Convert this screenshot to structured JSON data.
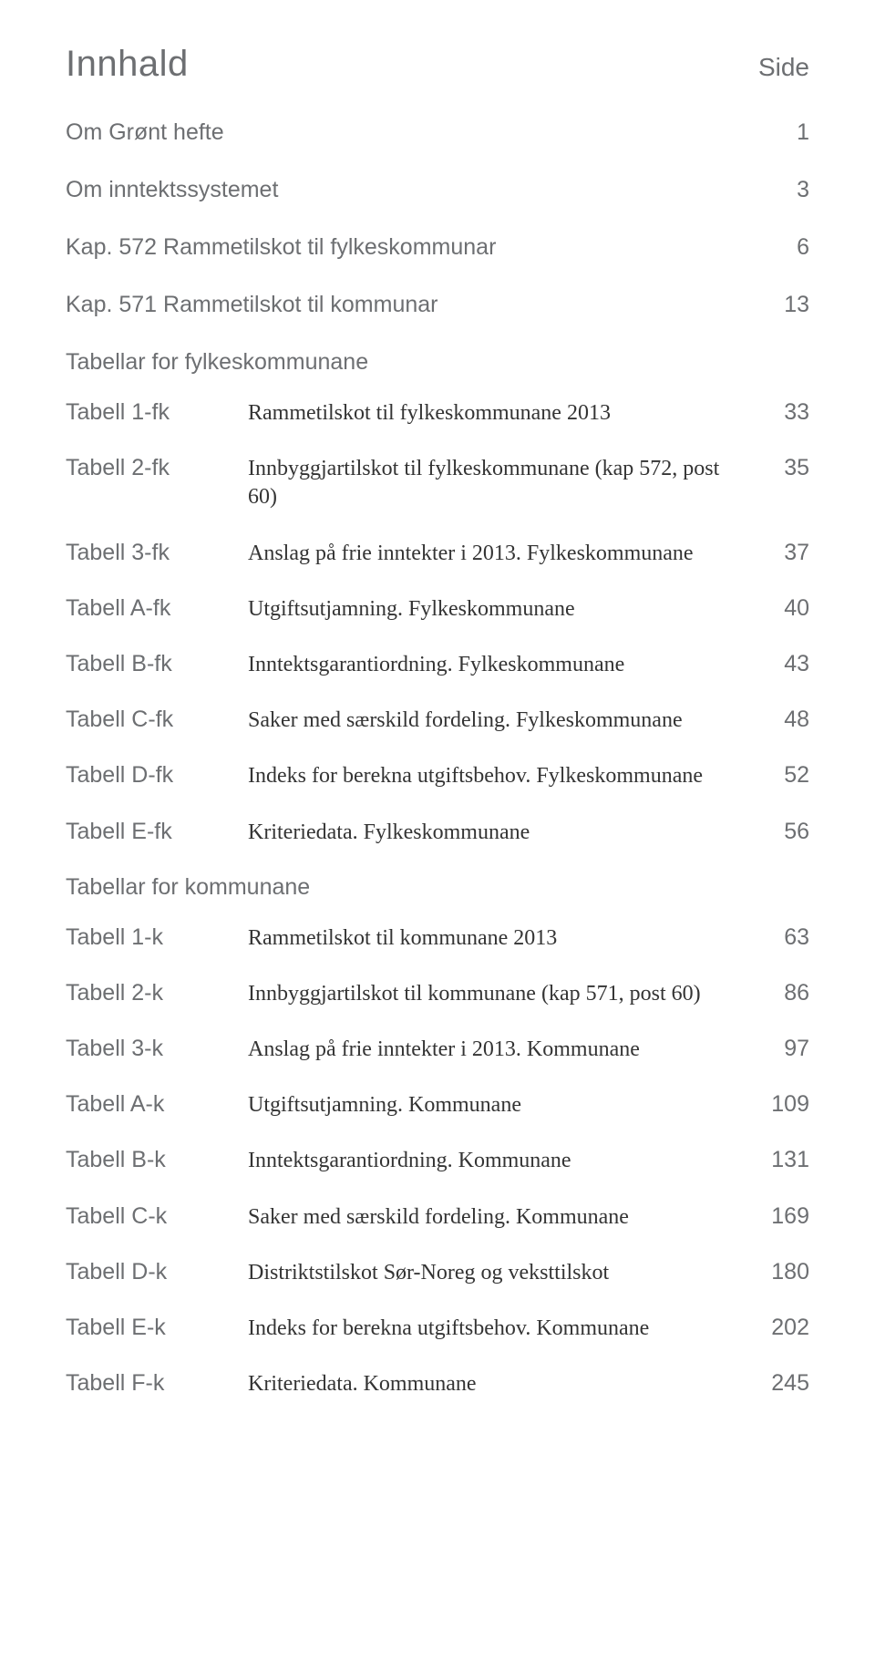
{
  "title": "Innhald",
  "side_label": "Side",
  "top_sections": [
    {
      "label": "Om Grønt hefte",
      "page": "1"
    },
    {
      "label": "Om inntektssystemet",
      "page": "3"
    },
    {
      "label": "Kap. 572 Rammetilskot til fylkeskommunar",
      "page": "6"
    },
    {
      "label": "Kap. 571 Rammetilskot til kommunar",
      "page": "13"
    }
  ],
  "group1_heading": "Tabellar for fylkeskommunane",
  "group1": [
    {
      "key": "Tabell 1-fk",
      "desc": "Rammetilskot til fylkeskommunane 2013",
      "page": "33"
    },
    {
      "key": "Tabell 2-fk",
      "desc": "Innbyggjartilskot til fylkeskommunane (kap 572, post 60)",
      "page": "35"
    },
    {
      "key": "Tabell 3-fk",
      "desc": "Anslag på frie inntekter i 2013. Fylkeskommunane",
      "page": "37"
    },
    {
      "key": "Tabell A-fk",
      "desc": "Utgiftsutjamning. Fylkeskommunane",
      "page": "40"
    },
    {
      "key": "Tabell B-fk",
      "desc": "Inntektsgarantiordning. Fylkeskommunane",
      "page": "43"
    },
    {
      "key": "Tabell C-fk",
      "desc": "Saker med særskild fordeling. Fylkeskommunane",
      "page": "48"
    },
    {
      "key": "Tabell D-fk",
      "desc": "Indeks for berekna utgiftsbehov. Fylkeskommunane",
      "page": "52"
    },
    {
      "key": "Tabell E-fk",
      "desc": "Kriteriedata. Fylkeskommunane",
      "page": "56"
    }
  ],
  "group2_heading": "Tabellar for kommunane",
  "group2": [
    {
      "key": "Tabell 1-k",
      "desc": "Rammetilskot til kommunane 2013",
      "page": "63"
    },
    {
      "key": "Tabell 2-k",
      "desc": "Innbyggjartilskot til kommunane (kap 571, post 60)",
      "page": "86"
    },
    {
      "key": "Tabell 3-k",
      "desc": "Anslag på frie inntekter i 2013. Kommunane",
      "page": "97"
    },
    {
      "key": "Tabell A-k",
      "desc": "Utgiftsutjamning. Kommunane",
      "page": "109"
    },
    {
      "key": "Tabell B-k",
      "desc": "Inntektsgarantiordning. Kommunane",
      "page": "131"
    },
    {
      "key": "Tabell C-k",
      "desc": "Saker med særskild fordeling. Kommunane",
      "page": "169"
    },
    {
      "key": "Tabell D-k",
      "desc": "Distriktstilskot Sør-Noreg og veksttilskot",
      "page": "180"
    },
    {
      "key": "Tabell E-k",
      "desc": "Indeks for berekna utgiftsbehov. Kommunane",
      "page": "202"
    },
    {
      "key": "Tabell F-k",
      "desc": "Kriteriedata. Kommunane",
      "page": "245"
    }
  ],
  "colors": {
    "heading_text": "#6d6f72",
    "body_text": "#343434",
    "background": "#ffffff"
  },
  "typography": {
    "title_fontsize": 40,
    "section_fontsize": 25,
    "desc_fontsize": 24,
    "desc_font_family": "serif"
  }
}
